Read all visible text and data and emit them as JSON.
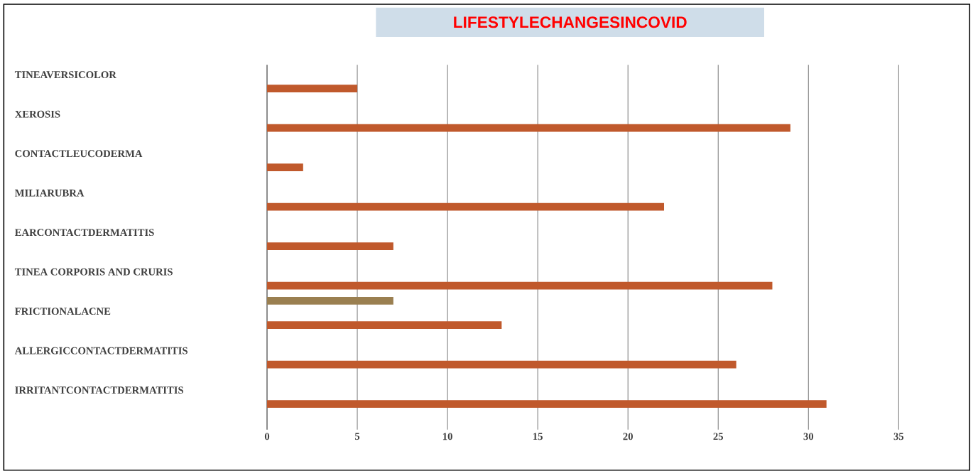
{
  "chart_data": {
    "type": "bar",
    "orientation": "horizontal",
    "title": "LIFESTYLECHANGESINCOVID",
    "categories": [
      "TINEAVERSICOLOR",
      "XEROSIS",
      "CONTACTLEUCODERMA",
      "MILIARUBRA",
      "EARCONTACTDERMATITIS",
      "TINEA CORPORIS  AND CRURIS",
      "FRICTIONALACNE",
      "ALLERGICCONTACTDERMATITIS",
      "IRRITANTCONTACTDERMATITIS"
    ],
    "series": [
      {
        "color": "#8f9c7c",
        "values": [
          null,
          null,
          null,
          null,
          null,
          null,
          null,
          null,
          null
        ]
      },
      {
        "color": "#9a7f50",
        "values": [
          null,
          null,
          null,
          null,
          null,
          7,
          null,
          null,
          null
        ]
      },
      {
        "color": "#c0592c",
        "values": [
          5,
          29,
          2,
          22,
          7,
          28,
          13,
          26,
          31
        ]
      }
    ],
    "xlim": [
      0,
      35
    ],
    "xticks": [
      0,
      5,
      10,
      15,
      20,
      25,
      30,
      35
    ],
    "grid": "x"
  }
}
